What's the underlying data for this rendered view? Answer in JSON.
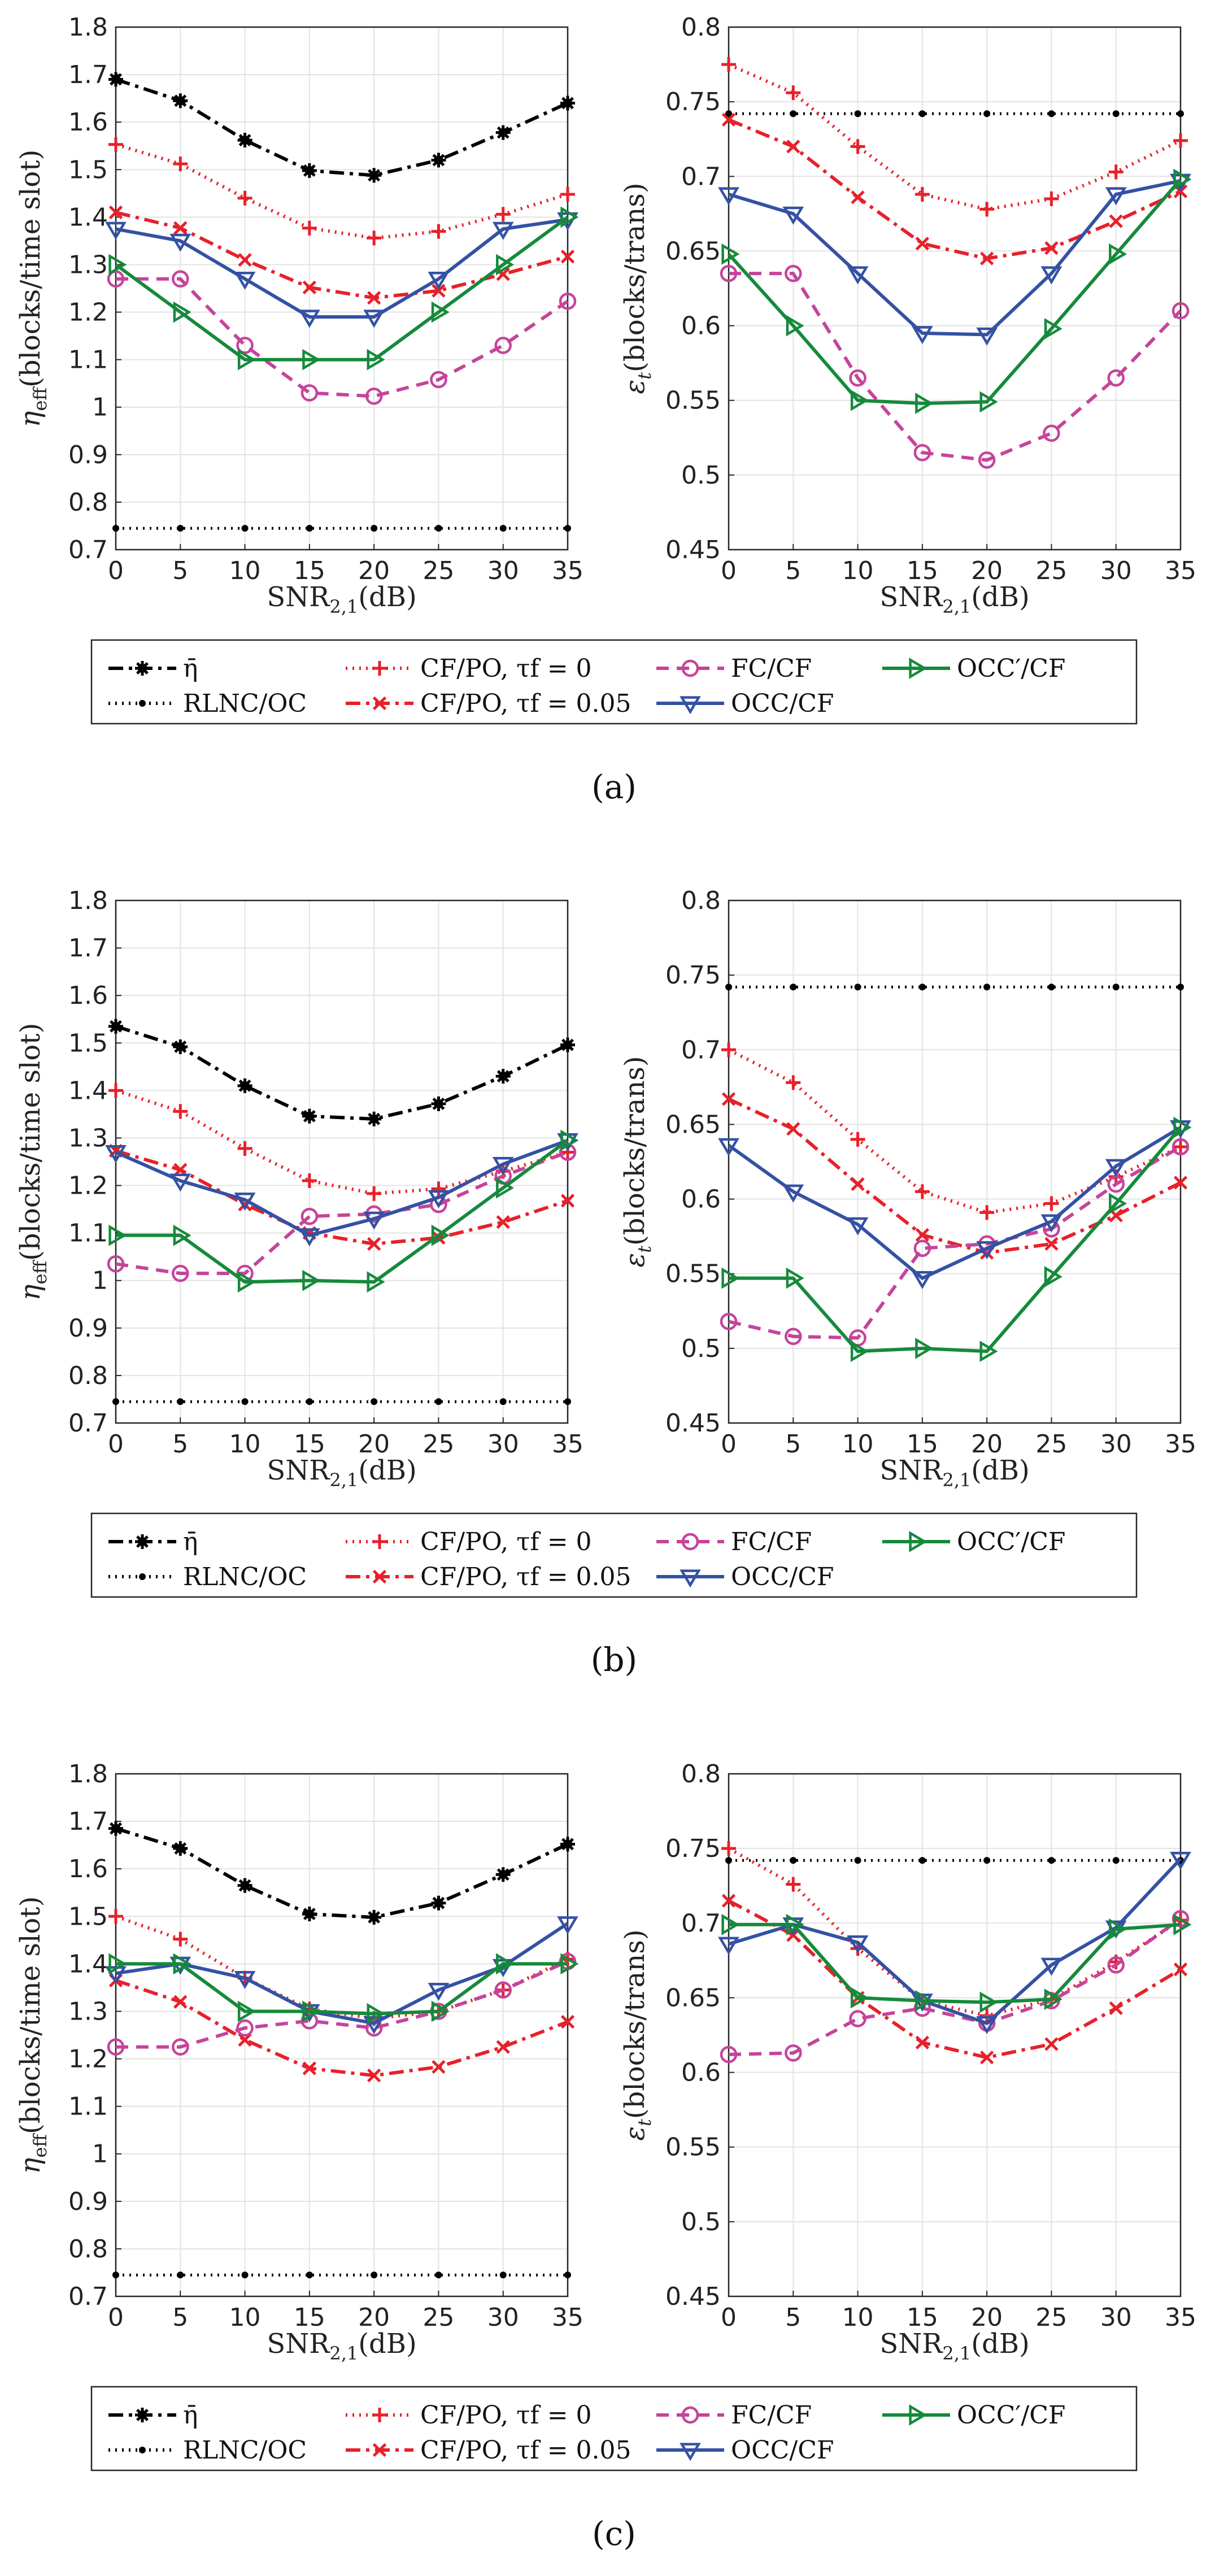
{
  "figure": {
    "axes_common": {
      "xlabel": "SNR2,1(dB)",
      "xlabel_parts": {
        "main": "SNR",
        "sub": "2,1",
        "unit": "(dB)"
      },
      "left_ylabel_parts": {
        "eta": "η",
        "sub": "eff",
        "unit": "(blocks/time slot)"
      },
      "right_ylabel_parts": {
        "eps": "ε",
        "sub": "t",
        "unit": "(blocks/trans)"
      },
      "x_ticks": [
        "0",
        "5",
        "10",
        "15",
        "20",
        "25",
        "30",
        "35"
      ],
      "left_y_ticks": [
        "0.7",
        "0.8",
        "0.9",
        "1",
        "1.1",
        "1.2",
        "1.3",
        "1.4",
        "1.5",
        "1.6",
        "1.7",
        "1.8"
      ],
      "right_y_ticks": [
        "0.45",
        "0.5",
        "0.55",
        "0.6",
        "0.65",
        "0.7",
        "0.75",
        "0.8"
      ]
    },
    "legend": {
      "entries": [
        {
          "key": "etabar",
          "label": "η̄",
          "color": "#000000",
          "marker": "asterisk",
          "dash": "dashdot"
        },
        {
          "key": "rlnc",
          "label": "RLNC/OC",
          "color": "#000000",
          "marker": "dot",
          "dash": "dotted"
        },
        {
          "key": "cfpo0",
          "label": "CF/PO, τf = 0",
          "color": "#e8202a",
          "marker": "plus",
          "dash": "dotted"
        },
        {
          "key": "cfpo05",
          "label": "CF/PO, τf = 0.05",
          "color": "#e8202a",
          "marker": "x",
          "dash": "dashdot"
        },
        {
          "key": "fccf",
          "label": "FC/CF",
          "color": "#c5449a",
          "marker": "circle",
          "dash": "dashed"
        },
        {
          "key": "occcf",
          "label": "OCC/CF",
          "color": "#3451a3",
          "marker": "tri-down",
          "dash": "solid"
        },
        {
          "key": "occpcf",
          "label": "OCC′/CF",
          "color": "#158a3b",
          "marker": "tri-right",
          "dash": "solid"
        }
      ]
    }
  },
  "chart_data": [
    {
      "id": "a-left",
      "panel": "a",
      "type": "line",
      "xlabel": "SNR2,1(dB)",
      "ylabel": "ηeff(blocks/time slot)",
      "x": [
        0,
        5,
        10,
        15,
        20,
        25,
        30,
        35
      ],
      "xlim": [
        0,
        35
      ],
      "ylim": [
        0.7,
        1.8
      ],
      "grid": true,
      "series": [
        {
          "key": "etabar",
          "name": "η̄",
          "values": [
            1.69,
            1.645,
            1.562,
            1.498,
            1.488,
            1.52,
            1.578,
            1.64
          ]
        },
        {
          "key": "rlnc",
          "name": "RLNC/OC",
          "values": [
            0.745,
            0.745,
            0.745,
            0.745,
            0.745,
            0.745,
            0.745,
            0.745
          ]
        },
        {
          "key": "cfpo0",
          "name": "CF/PO, τf = 0",
          "values": [
            1.553,
            1.512,
            1.44,
            1.377,
            1.356,
            1.37,
            1.406,
            1.448
          ]
        },
        {
          "key": "cfpo05",
          "name": "CF/PO, τf = 0.05",
          "values": [
            1.41,
            1.377,
            1.31,
            1.252,
            1.23,
            1.245,
            1.28,
            1.317
          ]
        },
        {
          "key": "fccf",
          "name": "FC/CF",
          "values": [
            1.27,
            1.27,
            1.13,
            1.03,
            1.023,
            1.058,
            1.13,
            1.223
          ]
        },
        {
          "key": "occcf",
          "name": "OCC/CF",
          "values": [
            1.375,
            1.35,
            1.27,
            1.19,
            1.19,
            1.27,
            1.375,
            1.395
          ]
        },
        {
          "key": "occpcf",
          "name": "OCC′/CF",
          "values": [
            1.3,
            1.2,
            1.1,
            1.1,
            1.1,
            1.2,
            1.3,
            1.4
          ]
        }
      ]
    },
    {
      "id": "a-right",
      "panel": "a",
      "type": "line",
      "xlabel": "SNR2,1(dB)",
      "ylabel": "εt(blocks/trans)",
      "x": [
        0,
        5,
        10,
        15,
        20,
        25,
        30,
        35
      ],
      "xlim": [
        0,
        35
      ],
      "ylim": [
        0.45,
        0.8
      ],
      "grid": true,
      "series": [
        {
          "key": "rlnc",
          "name": "RLNC/OC",
          "values": [
            0.742,
            0.742,
            0.742,
            0.742,
            0.742,
            0.742,
            0.742,
            0.742
          ]
        },
        {
          "key": "cfpo0",
          "name": "CF/PO, τf = 0",
          "values": [
            0.775,
            0.756,
            0.72,
            0.688,
            0.678,
            0.685,
            0.703,
            0.724
          ]
        },
        {
          "key": "cfpo05",
          "name": "CF/PO, τf = 0.05",
          "values": [
            0.738,
            0.72,
            0.686,
            0.655,
            0.645,
            0.652,
            0.67,
            0.69
          ]
        },
        {
          "key": "fccf",
          "name": "FC/CF",
          "values": [
            0.635,
            0.635,
            0.565,
            0.515,
            0.51,
            0.528,
            0.565,
            0.61
          ]
        },
        {
          "key": "occcf",
          "name": "OCC/CF",
          "values": [
            0.688,
            0.675,
            0.635,
            0.595,
            0.594,
            0.635,
            0.688,
            0.697
          ]
        },
        {
          "key": "occpcf",
          "name": "OCC′/CF",
          "values": [
            0.648,
            0.6,
            0.55,
            0.548,
            0.549,
            0.598,
            0.648,
            0.698
          ]
        }
      ]
    },
    {
      "id": "b-left",
      "panel": "b",
      "type": "line",
      "xlabel": "SNR2,1(dB)",
      "ylabel": "ηeff(blocks/time slot)",
      "x": [
        0,
        5,
        10,
        15,
        20,
        25,
        30,
        35
      ],
      "xlim": [
        0,
        35
      ],
      "ylim": [
        0.7,
        1.8
      ],
      "grid": true,
      "series": [
        {
          "key": "etabar",
          "name": "η̄",
          "values": [
            1.535,
            1.492,
            1.41,
            1.346,
            1.34,
            1.372,
            1.43,
            1.496
          ]
        },
        {
          "key": "rlnc",
          "name": "RLNC/OC",
          "values": [
            0.745,
            0.745,
            0.745,
            0.745,
            0.745,
            0.745,
            0.745,
            0.745
          ]
        },
        {
          "key": "cfpo0",
          "name": "CF/PO, τf = 0",
          "values": [
            1.4,
            1.356,
            1.278,
            1.21,
            1.183,
            1.193,
            1.23,
            1.27
          ]
        },
        {
          "key": "cfpo05",
          "name": "CF/PO, τf = 0.05",
          "values": [
            1.273,
            1.233,
            1.16,
            1.1,
            1.077,
            1.09,
            1.123,
            1.168
          ]
        },
        {
          "key": "fccf",
          "name": "FC/CF",
          "values": [
            1.035,
            1.015,
            1.015,
            1.135,
            1.14,
            1.16,
            1.22,
            1.27
          ]
        },
        {
          "key": "occcf",
          "name": "OCC/CF",
          "values": [
            1.27,
            1.21,
            1.17,
            1.095,
            1.13,
            1.175,
            1.245,
            1.295
          ]
        },
        {
          "key": "occpcf",
          "name": "OCC′/CF",
          "values": [
            1.095,
            1.095,
            0.997,
            1.0,
            0.997,
            1.095,
            1.195,
            1.295
          ]
        }
      ]
    },
    {
      "id": "b-right",
      "panel": "b",
      "type": "line",
      "xlabel": "SNR2,1(dB)",
      "ylabel": "εt(blocks/trans)",
      "x": [
        0,
        5,
        10,
        15,
        20,
        25,
        30,
        35
      ],
      "xlim": [
        0,
        35
      ],
      "ylim": [
        0.45,
        0.8
      ],
      "grid": true,
      "series": [
        {
          "key": "rlnc",
          "name": "RLNC/OC",
          "values": [
            0.742,
            0.742,
            0.742,
            0.742,
            0.742,
            0.742,
            0.742,
            0.742
          ]
        },
        {
          "key": "cfpo0",
          "name": "CF/PO, τf = 0",
          "values": [
            0.7,
            0.678,
            0.64,
            0.605,
            0.591,
            0.597,
            0.615,
            0.635
          ]
        },
        {
          "key": "cfpo05",
          "name": "CF/PO, τf = 0.05",
          "values": [
            0.667,
            0.647,
            0.61,
            0.576,
            0.564,
            0.57,
            0.589,
            0.611
          ]
        },
        {
          "key": "fccf",
          "name": "FC/CF",
          "values": [
            0.518,
            0.508,
            0.507,
            0.567,
            0.57,
            0.58,
            0.61,
            0.635
          ]
        },
        {
          "key": "occcf",
          "name": "OCC/CF",
          "values": [
            0.636,
            0.605,
            0.583,
            0.547,
            0.567,
            0.585,
            0.622,
            0.648
          ]
        },
        {
          "key": "occpcf",
          "name": "OCC′/CF",
          "values": [
            0.547,
            0.547,
            0.498,
            0.5,
            0.498,
            0.548,
            0.597,
            0.648
          ]
        }
      ]
    },
    {
      "id": "c-left",
      "panel": "c",
      "type": "line",
      "xlabel": "SNR2,1(dB)",
      "ylabel": "ηeff(blocks/time slot)",
      "x": [
        0,
        5,
        10,
        15,
        20,
        25,
        30,
        35
      ],
      "xlim": [
        0,
        35
      ],
      "ylim": [
        0.7,
        1.8
      ],
      "grid": true,
      "series": [
        {
          "key": "etabar",
          "name": "η̄",
          "values": [
            1.685,
            1.643,
            1.565,
            1.505,
            1.498,
            1.528,
            1.588,
            1.652
          ]
        },
        {
          "key": "rlnc",
          "name": "RLNC/OC",
          "values": [
            0.745,
            0.745,
            0.745,
            0.745,
            0.745,
            0.745,
            0.745,
            0.745
          ]
        },
        {
          "key": "cfpo0",
          "name": "CF/PO, τf = 0",
          "values": [
            1.5,
            1.452,
            1.37,
            1.305,
            1.285,
            1.3,
            1.345,
            1.41
          ]
        },
        {
          "key": "cfpo05",
          "name": "CF/PO, τf = 0.05",
          "values": [
            1.365,
            1.32,
            1.24,
            1.18,
            1.165,
            1.183,
            1.225,
            1.278
          ]
        },
        {
          "key": "fccf",
          "name": "FC/CF",
          "values": [
            1.225,
            1.225,
            1.265,
            1.28,
            1.265,
            1.3,
            1.345,
            1.405
          ]
        },
        {
          "key": "occcf",
          "name": "OCC/CF",
          "values": [
            1.38,
            1.4,
            1.37,
            1.3,
            1.275,
            1.345,
            1.395,
            1.485
          ]
        },
        {
          "key": "occpcf",
          "name": "OCC′/CF",
          "values": [
            1.4,
            1.4,
            1.3,
            1.3,
            1.295,
            1.3,
            1.4,
            1.4
          ]
        }
      ]
    },
    {
      "id": "c-right",
      "panel": "c",
      "type": "line",
      "xlabel": "SNR2,1(dB)",
      "ylabel": "εt(blocks/trans)",
      "x": [
        0,
        5,
        10,
        15,
        20,
        25,
        30,
        35
      ],
      "xlim": [
        0,
        35
      ],
      "ylim": [
        0.45,
        0.8
      ],
      "grid": true,
      "series": [
        {
          "key": "rlnc",
          "name": "RLNC/OC",
          "values": [
            0.742,
            0.742,
            0.742,
            0.742,
            0.742,
            0.742,
            0.742,
            0.742
          ]
        },
        {
          "key": "cfpo0",
          "name": "CF/PO, τf = 0",
          "values": [
            0.75,
            0.726,
            0.683,
            0.648,
            0.638,
            0.649,
            0.674,
            0.702
          ]
        },
        {
          "key": "cfpo05",
          "name": "CF/PO, τf = 0.05",
          "values": [
            0.715,
            0.692,
            0.65,
            0.62,
            0.61,
            0.619,
            0.643,
            0.669
          ]
        },
        {
          "key": "fccf",
          "name": "FC/CF",
          "values": [
            0.612,
            0.613,
            0.636,
            0.643,
            0.633,
            0.648,
            0.672,
            0.703
          ]
        },
        {
          "key": "occcf",
          "name": "OCC/CF",
          "values": [
            0.686,
            0.699,
            0.687,
            0.648,
            0.633,
            0.672,
            0.697,
            0.743
          ]
        },
        {
          "key": "occpcf",
          "name": "OCC′/CF",
          "values": [
            0.699,
            0.699,
            0.65,
            0.648,
            0.647,
            0.649,
            0.696,
            0.699
          ]
        }
      ]
    }
  ],
  "captions": {
    "a": "(a)",
    "b": "(b)",
    "c": "(c)"
  }
}
